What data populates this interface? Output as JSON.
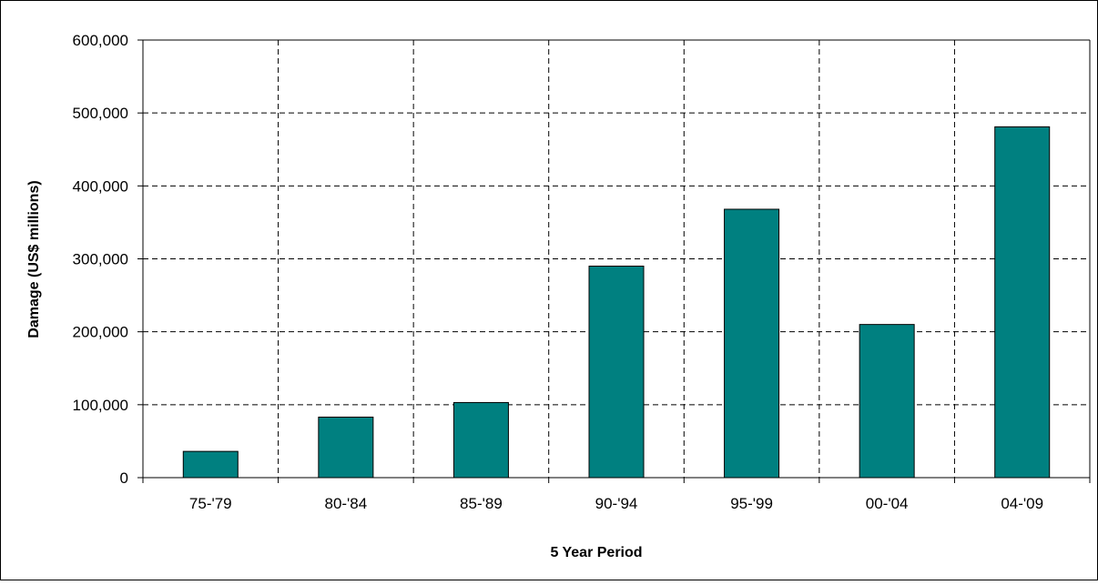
{
  "chart_data": {
    "type": "bar",
    "title": "",
    "xlabel": "5 Year Period",
    "ylabel": "Damage (US$ millions)",
    "categories": [
      "75-'79",
      "80-'84",
      "85-'89",
      "90-'94",
      "95-'99",
      "00-'04",
      "04-'09"
    ],
    "values": [
      36000,
      83000,
      103000,
      290000,
      368000,
      210000,
      481000
    ],
    "ylim": [
      0,
      600000
    ],
    "yticks": [
      0,
      100000,
      200000,
      300000,
      400000,
      500000,
      600000
    ],
    "ytick_labels": [
      "0",
      "100,000",
      "200,000",
      "300,000",
      "400,000",
      "500,000",
      "600,000"
    ],
    "grid": true,
    "legend": "none",
    "bar_color": "#008080"
  }
}
